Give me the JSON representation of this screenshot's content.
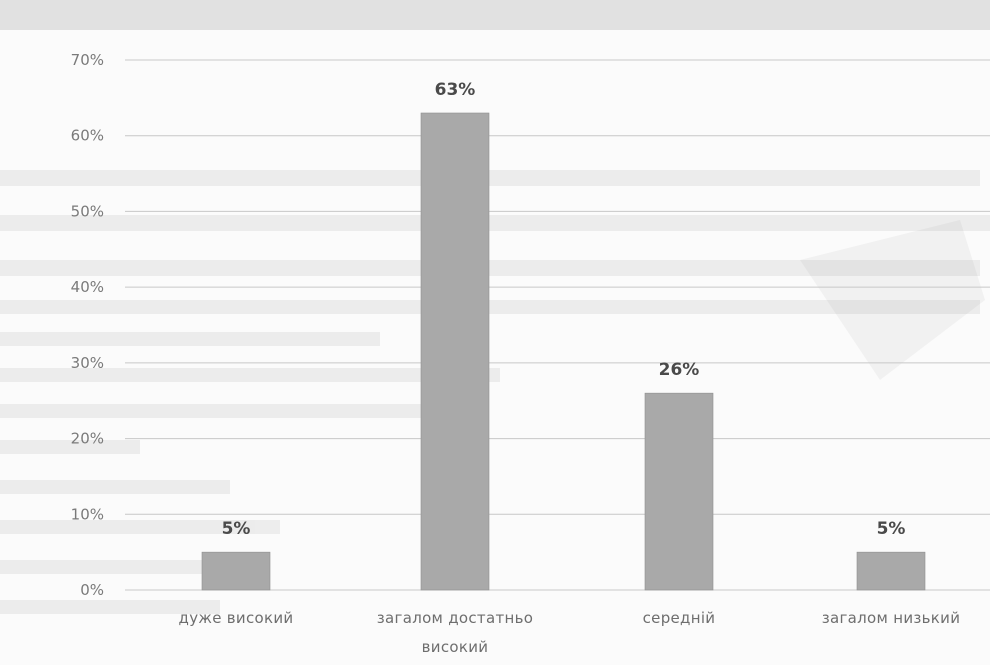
{
  "chart_data": {
    "type": "bar",
    "categories": [
      "дуже високий",
      "загалом достатньо високий",
      "середній",
      "загалом низький"
    ],
    "category_lines": [
      [
        "дуже високий"
      ],
      [
        "загалом достатньо",
        "високий"
      ],
      [
        "середній"
      ],
      [
        "загалом низький"
      ]
    ],
    "values": [
      5,
      63,
      26,
      5
    ],
    "data_labels": [
      "5%",
      "63%",
      "26%",
      "5%"
    ],
    "title": "",
    "xlabel": "",
    "ylabel": "",
    "ylim": [
      0,
      70
    ],
    "yticks": [
      0,
      10,
      20,
      30,
      40,
      50,
      60,
      70
    ],
    "ytick_labels": [
      "0%",
      "10%",
      "20%",
      "30%",
      "40%",
      "50%",
      "60%",
      "70%"
    ],
    "grid": true,
    "legend": "none",
    "bar_color": "#a9a9a9",
    "background_text": "scanned page text behind chart (illegible)"
  },
  "colors": {
    "bar": "#a9a9a9",
    "bar_edge": "#8f8f8f",
    "grid": "#c8c8c8",
    "axis_text": "#7a7a7a",
    "data_label": "#4a4a4a"
  }
}
